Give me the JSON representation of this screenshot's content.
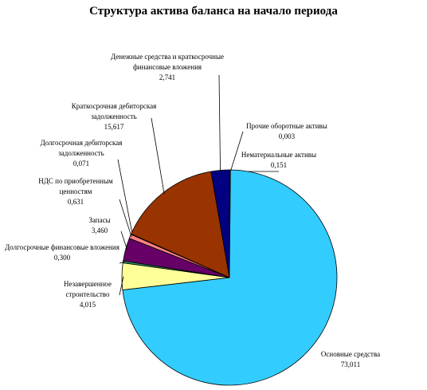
{
  "chart_data": {
    "type": "pie",
    "title": "Структура актива баланса на начало периода",
    "categories": [
      "Нематериальные активы",
      "Прочие оборотные активы",
      "Основные средства",
      "Незавершенное строительство",
      "Долгосрочные финансовые вложения",
      "Запасы",
      "НДС по приобретенным ценностям",
      "Долгосрочная дебиторская задолженность",
      "Краткосрочная дебиторская задолженность",
      "Денежные средства и краткосрочные финансовые вложения"
    ],
    "values": [
      0.151,
      0.003,
      73.011,
      4.015,
      0.3,
      3.46,
      0.631,
      0.071,
      15.617,
      2.741
    ],
    "value_labels": [
      "0,151",
      "0,003",
      "73,011",
      "4,015",
      "0,300",
      "3,460",
      "0,631",
      "0,071",
      "15,617",
      "2,741"
    ],
    "colors": [
      "#808080",
      "#ffffff",
      "#33ccff",
      "#ffff99",
      "#339966",
      "#660066",
      "#ff8080",
      "#ccffcc",
      "#993300",
      "#000080"
    ]
  }
}
